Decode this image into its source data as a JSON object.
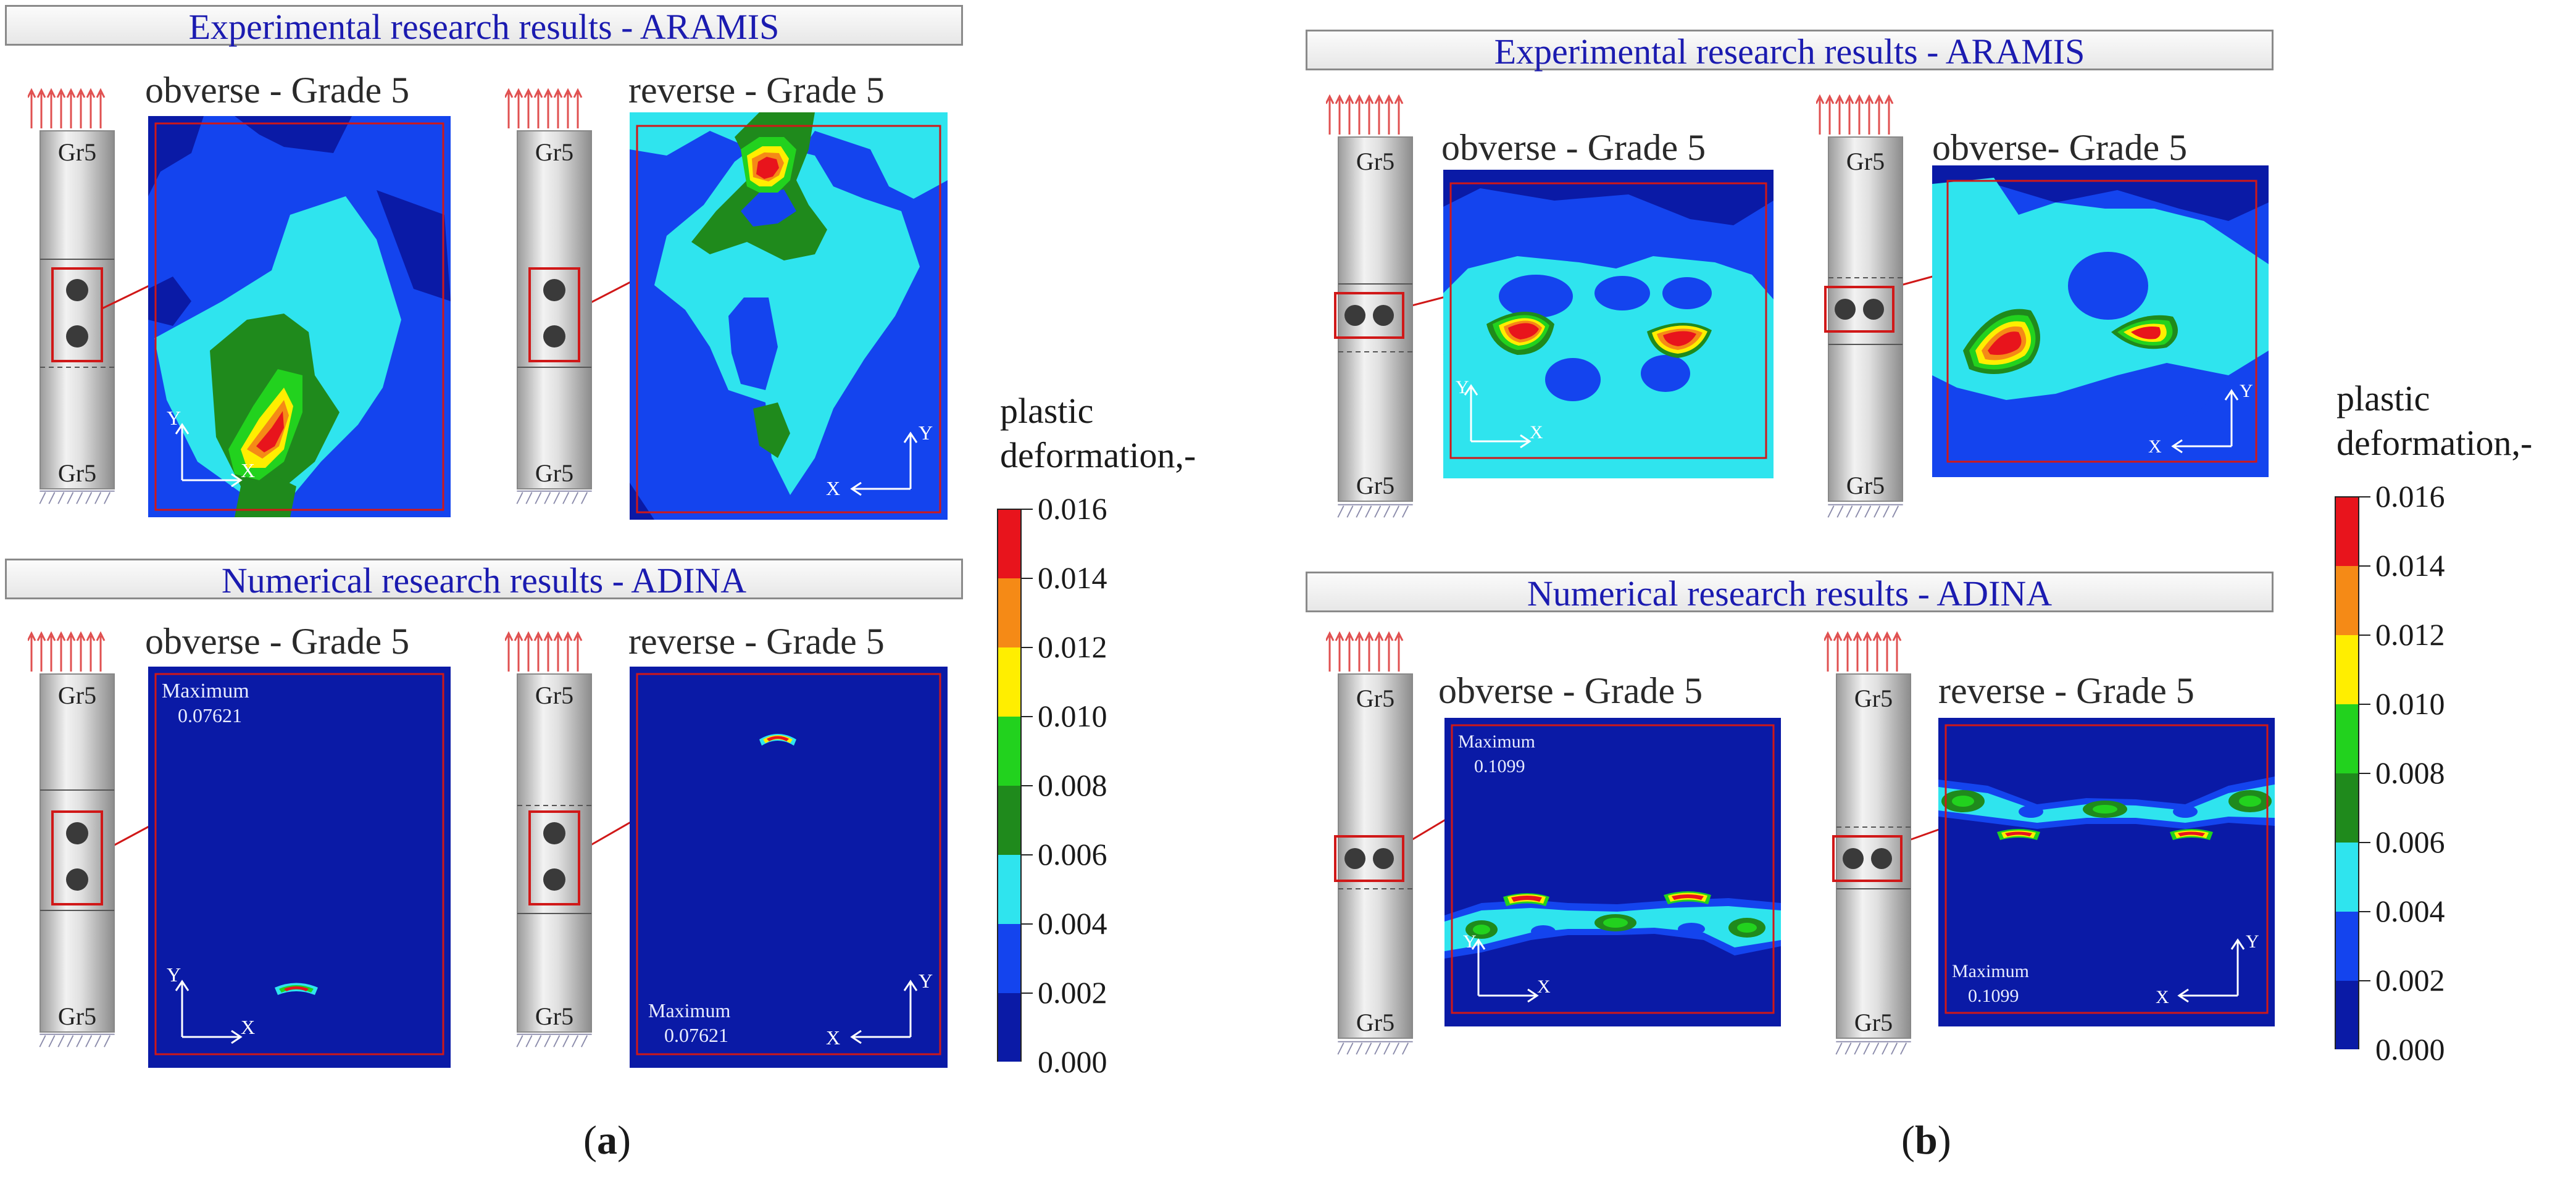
{
  "panel_a": {
    "experimental_title": "Experimental research results - ARAMIS",
    "numerical_title": "Numerical research results  - ADINA",
    "exp_left_label": "obverse - Grade 5",
    "exp_right_label": "reverse - Grade 5",
    "num_left_label": "obverse - Grade 5",
    "num_right_label": "reverse - Grade 5",
    "max_label": "Maximum",
    "max_left_value": "0.07621",
    "max_right_value": "0.07621",
    "sublabel_open": "(",
    "sublabel_letter": "a",
    "sublabel_close": ")"
  },
  "panel_b": {
    "experimental_title": "Experimental research results - ARAMIS",
    "numerical_title": "Numerical research results  - ADINA",
    "exp_left_label": "obverse - Grade 5",
    "exp_right_label": "obverse- Grade 5",
    "num_left_label": "obverse - Grade 5",
    "num_right_label": "reverse - Grade 5",
    "max_label": "Maximum",
    "max_left_value": "0.1099",
    "max_right_value": "0.1099",
    "sublabel_open": "(",
    "sublabel_letter": "b",
    "sublabel_close": ")"
  },
  "specimen": {
    "grade_label": "Gr5"
  },
  "axes": {
    "x": "X",
    "y": "Y"
  },
  "legend": {
    "title_line1": "plastic",
    "title_line2": "deformation,-",
    "ticks": [
      "0.016",
      "0.014",
      "0.012",
      "0.010",
      "0.008",
      "0.006",
      "0.004",
      "0.002",
      "0.000"
    ],
    "colors": [
      "#e8141c",
      "#f58a16",
      "#ffee00",
      "#22d21e",
      "#1f8a1c",
      "#2fe4ee",
      "#1444ee",
      "#0a1aa6"
    ]
  },
  "colors": {
    "dark_blue": "#0a1aa6",
    "blue": "#1444ee",
    "cyan": "#2fe4ee",
    "green_dark": "#1f8a1c",
    "green": "#22d21e",
    "yellow": "#ffee00",
    "orange": "#f58a16",
    "red": "#e8141c",
    "banner_text": "#1b1bb0"
  }
}
